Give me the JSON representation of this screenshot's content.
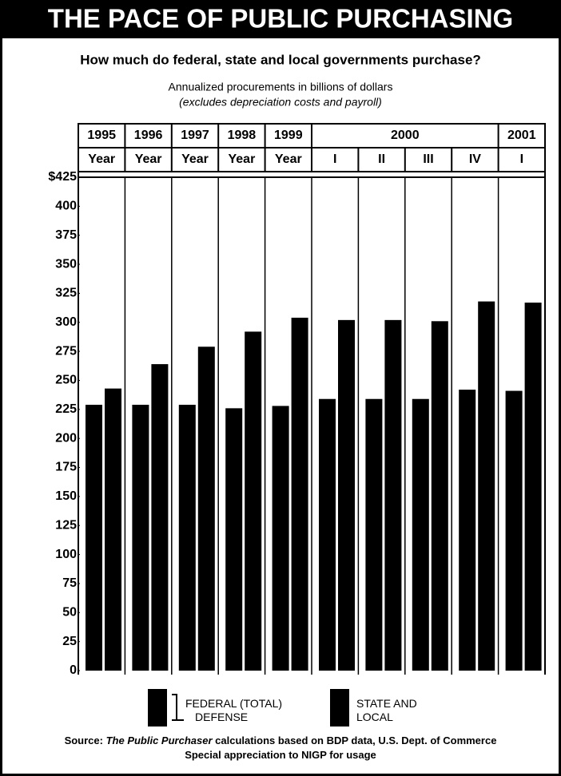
{
  "chart_data": {
    "type": "bar",
    "title": "THE PACE OF PUBLIC PURCHASING",
    "subtitle": "How much do federal, state and local governments purchase?",
    "axis_label": "Annualized procurements in billions of dollars",
    "axis_note": "(excludes depreciation costs and payroll)",
    "category_groups": [
      {
        "label": "1995",
        "span": 1
      },
      {
        "label": "1996",
        "span": 1
      },
      {
        "label": "1997",
        "span": 1
      },
      {
        "label": "1998",
        "span": 1
      },
      {
        "label": "1999",
        "span": 1
      },
      {
        "label": "2000",
        "span": 4
      },
      {
        "label": "2001",
        "span": 1
      }
    ],
    "categories": [
      "Year",
      "Year",
      "Year",
      "Year",
      "Year",
      "I",
      "II",
      "III",
      "IV",
      "I"
    ],
    "series": [
      {
        "name": "FEDERAL (TOTAL)",
        "color": "#000000",
        "values": [
          229,
          229,
          229,
          226,
          228,
          234,
          234,
          234,
          242,
          241
        ]
      },
      {
        "name": "STATE AND LOCAL",
        "color": "#000000",
        "values": [
          243,
          264,
          279,
          292,
          304,
          302,
          302,
          301,
          318,
          317
        ]
      }
    ],
    "legend_note": "DEFENSE",
    "ylim": [
      0,
      425
    ],
    "yticks": [
      0,
      25,
      50,
      75,
      100,
      125,
      150,
      175,
      200,
      225,
      250,
      275,
      300,
      325,
      350,
      375,
      400,
      {
        "value": 425,
        "label": "$425"
      }
    ],
    "grid": "vertical",
    "source": {
      "lead": "Source:",
      "publication": "The Public Purchaser",
      "text": " calculations based on BDP data, U.S. Dept. of Commerce",
      "line2": "Special appreciation to NIGP for usage"
    }
  }
}
